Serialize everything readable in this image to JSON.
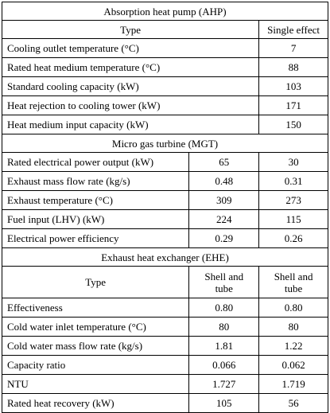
{
  "ahp": {
    "title": "Absorption heat pump (AHP)",
    "type_label": "Type",
    "type_value": "Single effect",
    "rows": [
      {
        "label": "Cooling outlet temperature (°C)",
        "value": "7"
      },
      {
        "label": "Rated heat medium temperature (°C)",
        "value": "88"
      },
      {
        "label": "Standard cooling capacity (kW)",
        "value": "103"
      },
      {
        "label": "Heat rejection to cooling tower (kW)",
        "value": "171"
      },
      {
        "label": "Heat medium input capacity (kW)",
        "value": "150"
      }
    ]
  },
  "mgt": {
    "title": "Micro gas turbine (MGT)",
    "rows": [
      {
        "label": "Rated electrical power output (kW)",
        "v1": "65",
        "v2": "30"
      },
      {
        "label": "Exhaust mass flow rate (kg/s)",
        "v1": "0.48",
        "v2": "0.31"
      },
      {
        "label": "Exhaust temperature (°C)",
        "v1": "309",
        "v2": "273"
      },
      {
        "label": "Fuel input (LHV) (kW)",
        "v1": "224",
        "v2": "115"
      },
      {
        "label": "Electrical power efficiency",
        "v1": "0.29",
        "v2": "0.26"
      }
    ]
  },
  "ehe": {
    "title": "Exhaust heat exchanger (EHE)",
    "type_label": "Type",
    "type_v1_line1": "Shell and",
    "type_v1_line2": "tube",
    "type_v2_line1": "Shell and",
    "type_v2_line2": "tube",
    "rows": [
      {
        "label": "Effectiveness",
        "v1": "0.80",
        "v2": "0.80"
      },
      {
        "label": "Cold water inlet temperature (°C)",
        "v1": "80",
        "v2": "80"
      },
      {
        "label": "Cold water mass flow rate (kg/s)",
        "v1": "1.81",
        "v2": "1.22"
      },
      {
        "label": "Capacity ratio",
        "v1": "0.066",
        "v2": "0.062"
      },
      {
        "label": "NTU",
        "v1": "1.727",
        "v2": "1.719"
      },
      {
        "label": "Rated heat recovery (kW)",
        "v1": "105",
        "v2": "56"
      }
    ]
  }
}
